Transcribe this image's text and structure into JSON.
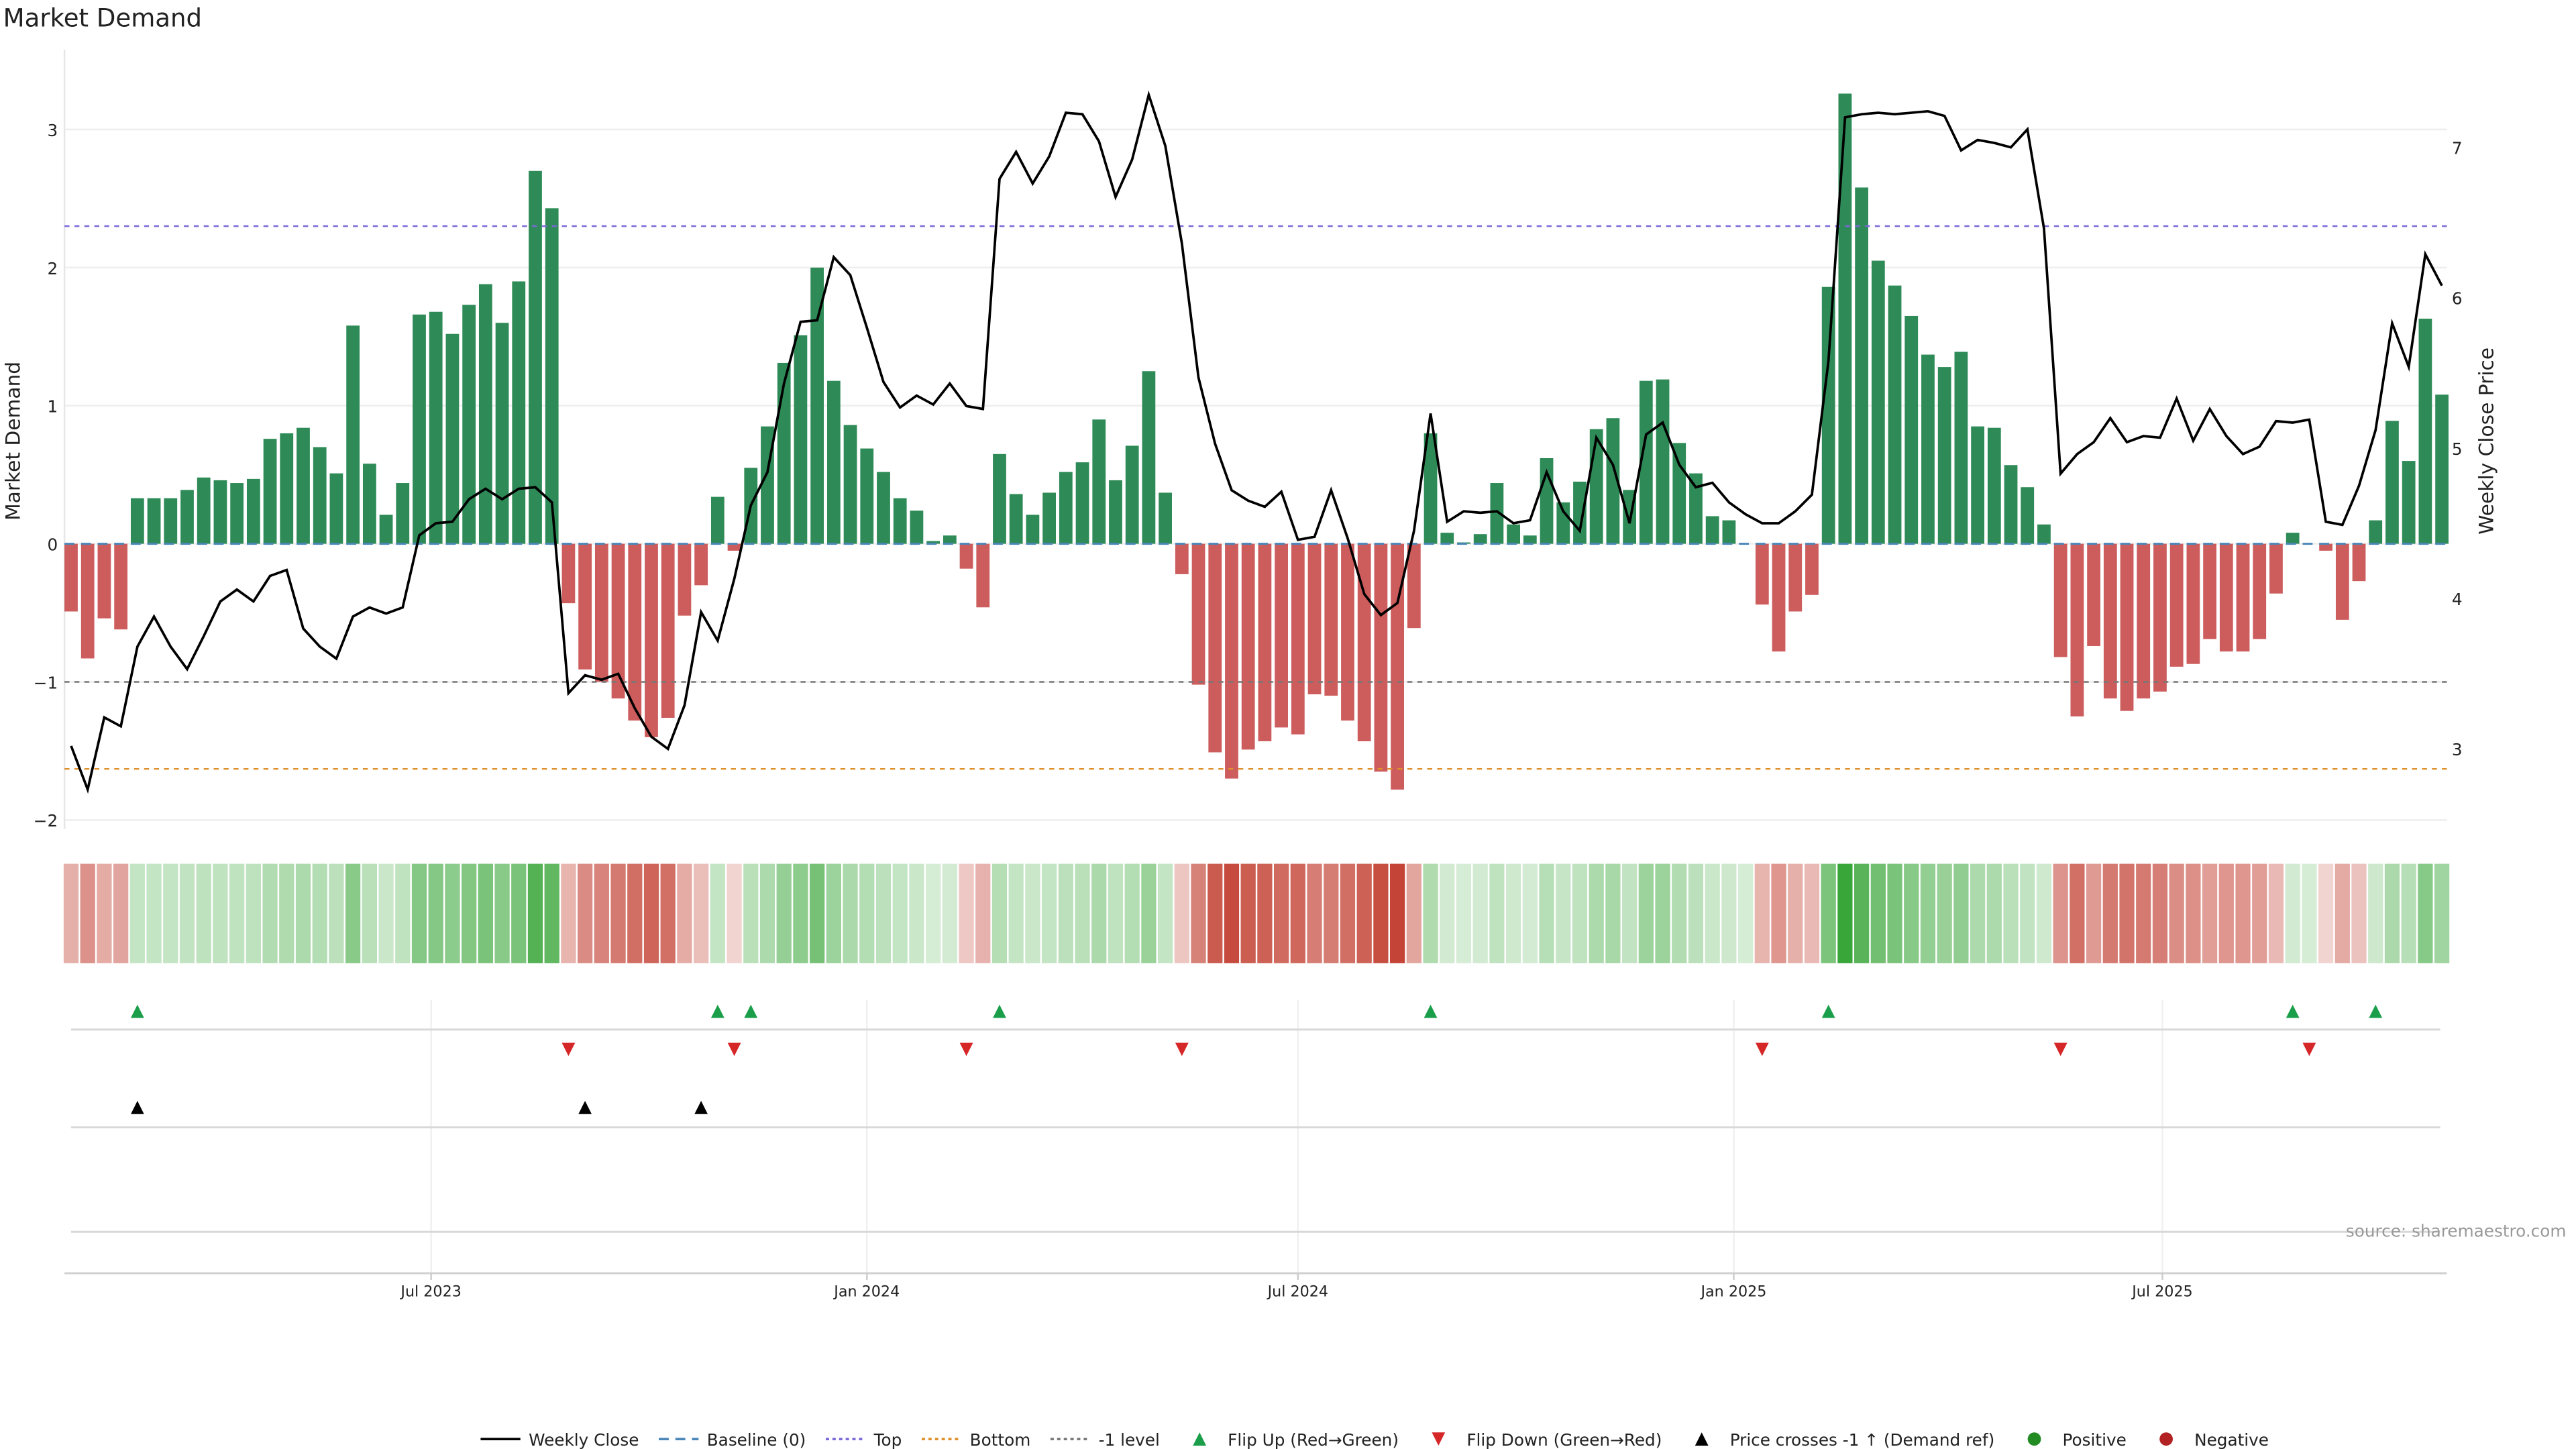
{
  "chart_data": {
    "type": "bar",
    "title": "Market Demand",
    "ylabel": "Market Demand",
    "y2label": "Weekly Close Price",
    "ylim": [
      -2.4,
      3.4
    ],
    "y2lim": [
      2.3,
      7.7
    ],
    "yticks": [
      -2,
      -1,
      0,
      1,
      2,
      3
    ],
    "y2ticks": [
      3,
      4,
      5,
      6,
      7
    ],
    "ytick_labels": [
      "−2",
      "−1",
      "0",
      "1",
      "2",
      "3"
    ],
    "y2tick_labels": [
      "3",
      "4",
      "5",
      "6",
      "7"
    ],
    "frequency": "weekly",
    "week_start": "2023-01-30",
    "xticks": [
      {
        "label": "Jul 2023",
        "date": "2023-07-01"
      },
      {
        "label": "Jan 2024",
        "date": "2024-01-01"
      },
      {
        "label": "Jul 2024",
        "date": "2024-07-01"
      },
      {
        "label": "Jan 2025",
        "date": "2025-01-01"
      },
      {
        "label": "Jul 2025",
        "date": "2025-07-01"
      }
    ],
    "levels": {
      "top": 2.3,
      "bottom": -1.63,
      "minus_one": -1,
      "baseline": 0
    },
    "demand": [
      -0.49,
      -0.83,
      -0.54,
      -0.62,
      0.33,
      0.33,
      0.33,
      0.39,
      0.48,
      0.46,
      0.44,
      0.47,
      0.76,
      0.8,
      0.84,
      0.7,
      0.51,
      1.58,
      0.58,
      0.21,
      0.44,
      1.66,
      1.68,
      1.52,
      1.73,
      1.88,
      1.6,
      1.9,
      2.7,
      2.43,
      -0.43,
      -0.91,
      -1.0,
      -1.12,
      -1.28,
      -1.4,
      -1.26,
      -0.52,
      -0.3,
      0.34,
      -0.05,
      0.55,
      0.85,
      1.31,
      1.51,
      2.0,
      1.18,
      0.86,
      0.69,
      0.52,
      0.33,
      0.24,
      0.02,
      0.06,
      -0.18,
      -0.46,
      0.65,
      0.36,
      0.21,
      0.37,
      0.52,
      0.59,
      0.9,
      0.46,
      0.71,
      1.25,
      0.37,
      -0.22,
      -1.02,
      -1.51,
      -1.7,
      -1.49,
      -1.43,
      -1.33,
      -1.38,
      -1.09,
      -1.1,
      -1.28,
      -1.43,
      -1.65,
      -1.78,
      -0.61,
      0.8,
      0.08,
      0.01,
      0.07,
      0.44,
      0.14,
      0.06,
      0.62,
      0.3,
      0.45,
      0.83,
      0.91,
      0.39,
      1.18,
      1.19,
      0.73,
      0.51,
      0.2,
      0.17,
      0.0,
      -0.44,
      -0.78,
      -0.49,
      -0.37,
      1.86,
      3.26,
      2.58,
      2.05,
      1.87,
      1.65,
      1.37,
      1.28,
      1.39,
      0.85,
      0.84,
      0.57,
      0.41,
      0.14,
      -0.82,
      -1.25,
      -0.74,
      -1.12,
      -1.21,
      -1.12,
      -1.07,
      -0.89,
      -0.87,
      -0.69,
      -0.78,
      -0.78,
      -0.69,
      -0.36,
      0.08,
      0.0,
      -0.05,
      -0.55,
      -0.27,
      0.17,
      0.89,
      0.6,
      1.63,
      1.08
    ],
    "close": [
      3.02,
      2.73,
      3.21,
      3.15,
      3.68,
      3.88,
      3.68,
      3.53,
      3.75,
      3.98,
      4.06,
      3.98,
      4.15,
      4.19,
      3.8,
      3.68,
      3.6,
      3.88,
      3.94,
      3.9,
      3.94,
      4.42,
      4.5,
      4.51,
      4.66,
      4.73,
      4.66,
      4.73,
      4.74,
      4.64,
      3.37,
      3.49,
      3.46,
      3.5,
      3.27,
      3.08,
      3.0,
      3.29,
      3.91,
      3.72,
      4.13,
      4.62,
      4.84,
      5.43,
      5.84,
      5.85,
      6.27,
      6.15,
      5.8,
      5.44,
      5.27,
      5.35,
      5.29,
      5.43,
      5.28,
      5.26,
      6.79,
      6.97,
      6.76,
      6.94,
      7.23,
      7.22,
      7.04,
      6.67,
      6.92,
      7.35,
      7.01,
      6.36,
      5.47,
      5.03,
      4.72,
      4.65,
      4.61,
      4.71,
      4.39,
      4.41,
      4.72,
      4.4,
      4.03,
      3.89,
      3.97,
      4.45,
      5.23,
      4.51,
      4.58,
      4.57,
      4.58,
      4.5,
      4.52,
      4.84,
      4.58,
      4.45,
      5.07,
      4.89,
      4.5,
      5.09,
      5.17,
      4.89,
      4.74,
      4.77,
      4.64,
      4.56,
      4.5,
      4.5,
      4.58,
      4.69,
      5.58,
      7.2,
      7.22,
      7.23,
      7.22,
      7.23,
      7.24,
      7.21,
      6.98,
      7.05,
      7.03,
      7.0,
      7.12,
      6.46,
      4.83,
      4.96,
      5.04,
      5.2,
      5.04,
      5.08,
      5.07,
      5.33,
      5.05,
      5.26,
      5.08,
      4.96,
      5.01,
      5.18,
      5.17,
      5.19,
      4.51,
      4.49,
      4.75,
      5.12,
      5.83,
      5.54,
      6.29,
      6.08
    ],
    "flip_up_weeks": [
      4,
      39,
      41,
      56,
      82,
      106,
      134,
      139
    ],
    "flip_down_weeks": [
      30,
      40,
      54,
      67,
      102,
      120,
      135
    ],
    "price_cross_weeks": [
      4,
      31,
      38
    ],
    "legend": [
      {
        "label": "Weekly Close",
        "kind": "line",
        "color": "#000000"
      },
      {
        "label": "Baseline (0)",
        "kind": "dash",
        "color": "#4a86b8"
      },
      {
        "label": "Top",
        "kind": "dot",
        "color": "#7b68d9"
      },
      {
        "label": "Bottom",
        "kind": "dot",
        "color": "#e0902a"
      },
      {
        "label": "-1 level",
        "kind": "dot",
        "color": "#777777"
      },
      {
        "label": "Flip Up (Red→Green)",
        "kind": "up",
        "color": "#1a9e4a"
      },
      {
        "label": "Flip Down (Green→Red)",
        "kind": "down",
        "color": "#d62728"
      },
      {
        "label": "Price crosses -1 ↑ (Demand ref)",
        "kind": "up",
        "color": "#000000"
      },
      {
        "label": "Positive",
        "kind": "circle",
        "color": "#228b22"
      },
      {
        "label": "Negative",
        "kind": "circle",
        "color": "#b22222"
      }
    ],
    "legend_position": "bottom-center",
    "colors": {
      "positive": "#2e8b57",
      "negative": "#cd5c5c",
      "heat_pos": "#2ca02c",
      "heat_neg": "#c0392b"
    }
  },
  "source": "source: sharemaestro.com"
}
